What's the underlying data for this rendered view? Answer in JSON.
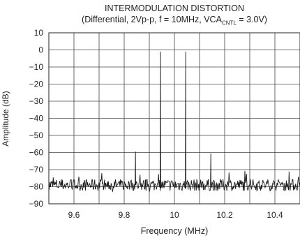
{
  "title": "INTERMODULATION DISTORTION",
  "subtitle": {
    "prefix": "(Differential, 2Vp-p, f = 10MHz, VCA",
    "sub": "CNTL",
    "suffix": " = 3.0V)"
  },
  "chart_data": {
    "type": "line",
    "title": "INTERMODULATION DISTORTION",
    "xlabel": "Frequency (MHz)",
    "ylabel": "Amplitude (dB)",
    "xlim": [
      9.5,
      10.5
    ],
    "ylim": [
      -90,
      10
    ],
    "x_ticks": [
      9.6,
      9.8,
      10,
      10.2,
      10.4
    ],
    "x_tick_labels": [
      "9.6",
      "9.8",
      "10",
      "10.2",
      "10.4"
    ],
    "y_ticks": [
      10,
      0,
      -10,
      -20,
      -30,
      -40,
      -50,
      -60,
      -70,
      -80,
      -90
    ],
    "y_tick_labels": [
      "10",
      "0",
      "−10",
      "−20",
      "−30",
      "−40",
      "−50",
      "−60",
      "−70",
      "−80",
      "−90"
    ],
    "x_minor_grid_step": 0.1,
    "grid": true,
    "noise_floor_db": -79,
    "series": [
      {
        "x": [
          9.5,
          9.84,
          9.845,
          9.85,
          9.94,
          9.945,
          9.95,
          10.04,
          10.045,
          10.05,
          10.14,
          10.145,
          10.15,
          10.5
        ],
        "y": [
          -79,
          -79,
          -59.5,
          -79,
          -79,
          -1,
          -79,
          -79,
          -1,
          -79,
          -79,
          -60.5,
          -79,
          -79
        ]
      }
    ],
    "line_color": "#1a1a1a"
  }
}
